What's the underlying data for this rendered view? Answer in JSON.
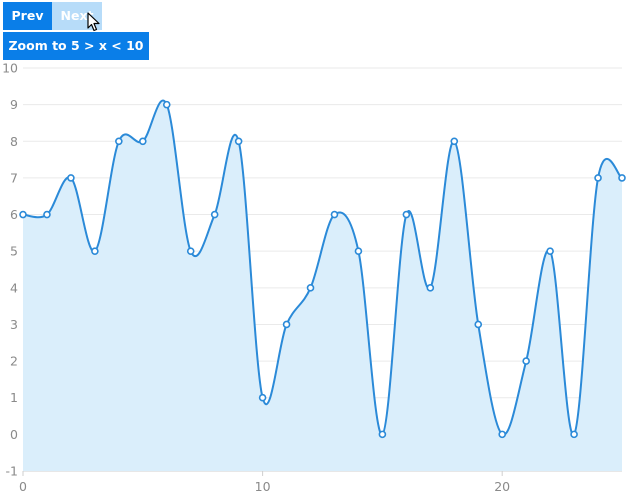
{
  "toolbar": {
    "prev_label": "Prev",
    "next_label": "Next",
    "zoom_label": "Zoom to 5 > x < 10"
  },
  "icons": {
    "cursor": "mouse-pointer-icon"
  },
  "colors": {
    "button_active": "#0a7ee8",
    "button_disabled": "#b7dcf9",
    "line": "#2b8ad8",
    "area_fill": "#daeefb",
    "grid": "#eaeaea"
  },
  "chart_data": {
    "type": "area",
    "title": "",
    "xlabel": "",
    "ylabel": "",
    "x": [
      0,
      1,
      2,
      3,
      4,
      5,
      6,
      7,
      8,
      9,
      10,
      11,
      12,
      13,
      14,
      15,
      16,
      17,
      18,
      19,
      20,
      21,
      22,
      23,
      24,
      25
    ],
    "values": [
      6,
      6,
      7,
      5,
      8,
      8,
      9,
      5,
      6,
      8,
      1,
      3,
      4,
      6,
      5,
      0,
      6,
      4,
      8,
      3,
      0,
      2,
      5,
      0,
      7,
      7
    ],
    "xlim": [
      0,
      25
    ],
    "ylim": [
      -1,
      10
    ],
    "x_ticks": [
      0,
      10,
      20
    ],
    "y_ticks": [
      -1,
      0,
      1,
      2,
      3,
      4,
      5,
      6,
      7,
      8,
      9,
      10
    ],
    "grid": true,
    "smooth": true,
    "markers": true
  }
}
